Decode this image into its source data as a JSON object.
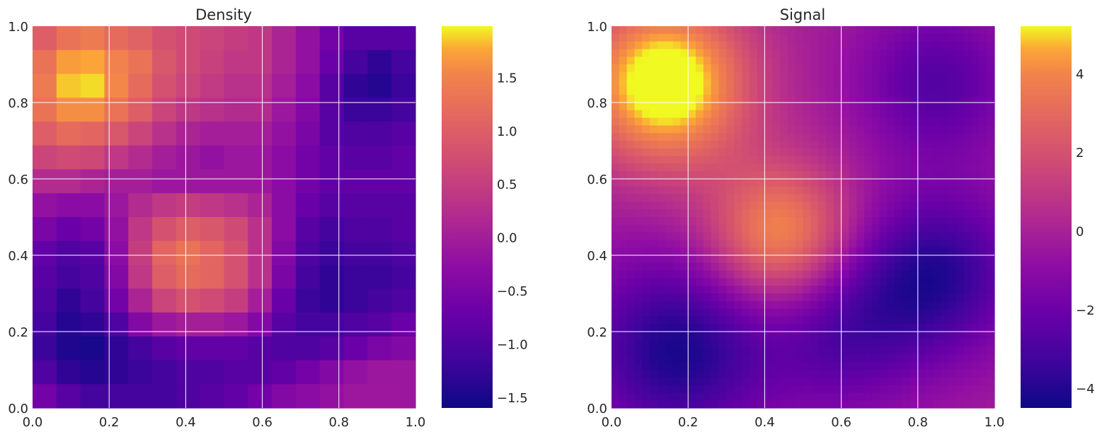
{
  "chart_data": [
    {
      "type": "heatmap",
      "title": "Density",
      "xlim": [
        0.0,
        1.0
      ],
      "ylim": [
        0.0,
        1.0
      ],
      "x_ticks": [
        "0.0",
        "0.2",
        "0.4",
        "0.6",
        "0.8",
        "1.0"
      ],
      "y_ticks": [
        "0.0",
        "0.2",
        "0.4",
        "0.6",
        "0.8",
        "1.0"
      ],
      "grid": true,
      "colormap": "plasma",
      "colorbar": {
        "min": -1.6,
        "max": 1.98,
        "ticks": [
          -1.5,
          -1.0,
          -0.5,
          0.0,
          0.5,
          1.0,
          1.5
        ],
        "tick_labels": [
          "−1.5",
          "−1.0",
          "−0.5",
          "0.0",
          "0.5",
          "1.0",
          "1.5"
        ]
      },
      "grid_shape": [
        16,
        16
      ],
      "row_order": "top-to-bottom",
      "values": [
        [
          1.0,
          1.3,
          1.4,
          1.2,
          1.05,
          0.8,
          0.7,
          0.6,
          0.5,
          0.4,
          0.1,
          -0.2,
          -0.6,
          -0.9,
          -0.9,
          -0.9
        ],
        [
          1.3,
          1.7,
          1.75,
          1.5,
          1.3,
          0.9,
          0.7,
          0.55,
          0.4,
          0.4,
          0.1,
          -0.2,
          -0.7,
          -1.1,
          -1.3,
          -1.1
        ],
        [
          1.4,
          1.85,
          1.9,
          1.55,
          1.2,
          0.8,
          0.6,
          0.45,
          0.3,
          0.3,
          0.0,
          -0.3,
          -0.9,
          -1.3,
          -1.4,
          -1.2
        ],
        [
          1.3,
          1.6,
          1.6,
          1.3,
          1.0,
          0.6,
          0.4,
          0.3,
          0.2,
          0.2,
          -0.1,
          -0.4,
          -0.9,
          -1.2,
          -1.2,
          -1.1
        ],
        [
          1.0,
          1.2,
          1.1,
          0.9,
          0.6,
          0.3,
          0.1,
          0.0,
          0.0,
          0.0,
          -0.2,
          -0.5,
          -0.9,
          -1.0,
          -1.0,
          -0.9
        ],
        [
          0.6,
          0.7,
          0.65,
          0.4,
          0.2,
          0.0,
          -0.1,
          -0.2,
          -0.1,
          -0.1,
          -0.3,
          -0.6,
          -0.8,
          -0.9,
          -0.9,
          -0.8
        ],
        [
          0.2,
          0.2,
          0.1,
          0.0,
          0.0,
          -0.1,
          -0.1,
          -0.1,
          -0.1,
          -0.1,
          -0.3,
          -0.6,
          -0.8,
          -0.8,
          -0.8,
          -0.8
        ],
        [
          -0.2,
          -0.3,
          -0.3,
          -0.1,
          0.2,
          0.4,
          0.5,
          0.4,
          0.3,
          0.1,
          -0.3,
          -0.7,
          -0.9,
          -0.9,
          -0.9,
          -0.9
        ],
        [
          -0.5,
          -0.7,
          -0.6,
          -0.2,
          0.4,
          0.8,
          1.0,
          0.9,
          0.7,
          0.3,
          -0.3,
          -0.9,
          -1.1,
          -1.0,
          -1.0,
          -0.9
        ],
        [
          -0.8,
          -1.0,
          -0.9,
          -0.3,
          0.5,
          1.1,
          1.3,
          1.1,
          0.8,
          0.3,
          -0.4,
          -1.0,
          -1.2,
          -1.1,
          -1.1,
          -1.0
        ],
        [
          -0.9,
          -1.1,
          -1.0,
          -0.4,
          0.4,
          1.0,
          1.2,
          1.1,
          0.8,
          0.3,
          -0.5,
          -1.1,
          -1.3,
          -1.2,
          -1.2,
          -1.1
        ],
        [
          -1.0,
          -1.3,
          -1.1,
          -0.6,
          0.1,
          0.6,
          0.8,
          0.7,
          0.5,
          0.0,
          -0.7,
          -1.2,
          -1.3,
          -1.2,
          -1.1,
          -1.0
        ],
        [
          -1.1,
          -1.4,
          -1.3,
          -1.0,
          -0.4,
          -0.1,
          0.0,
          0.0,
          -0.1,
          -0.4,
          -0.9,
          -1.1,
          -1.1,
          -1.0,
          -0.9,
          -0.7
        ],
        [
          -1.2,
          -1.45,
          -1.5,
          -1.3,
          -1.1,
          -0.9,
          -0.8,
          -0.8,
          -0.8,
          -0.9,
          -1.0,
          -1.0,
          -0.9,
          -0.7,
          -0.5,
          -0.4
        ],
        [
          -1.0,
          -1.3,
          -1.4,
          -1.3,
          -1.2,
          -1.1,
          -1.0,
          -1.0,
          -0.9,
          -0.9,
          -0.8,
          -0.6,
          -0.4,
          -0.2,
          -0.1,
          -0.1
        ],
        [
          -0.6,
          -0.9,
          -1.1,
          -1.1,
          -1.1,
          -1.1,
          -1.0,
          -0.9,
          -0.8,
          -0.6,
          -0.4,
          -0.3,
          -0.2,
          -0.1,
          -0.1,
          -0.1
        ]
      ]
    },
    {
      "type": "heatmap",
      "title": "Signal",
      "xlim": [
        0.0,
        1.0
      ],
      "ylim": [
        0.0,
        1.0
      ],
      "x_ticks": [
        "0.0",
        "0.2",
        "0.4",
        "0.6",
        "0.8",
        "1.0"
      ],
      "y_ticks": [
        "0.0",
        "0.2",
        "0.4",
        "0.6",
        "0.8",
        "1.0"
      ],
      "grid": true,
      "colormap": "plasma",
      "colorbar": {
        "min": -4.5,
        "max": 5.2,
        "ticks": [
          -4,
          -2,
          0,
          2,
          4
        ],
        "tick_labels": [
          "−4",
          "−2",
          "0",
          "2",
          "4"
        ]
      },
      "components": [
        {
          "cx": 0.14,
          "cy": 0.85,
          "amp": 6.5,
          "sigma": 0.15
        },
        {
          "cx": 0.44,
          "cy": 0.45,
          "amp": 4.5,
          "sigma": 0.13
        },
        {
          "cx": 0.17,
          "cy": 0.15,
          "amp": -4.0,
          "sigma": 0.17
        },
        {
          "cx": 0.85,
          "cy": 0.35,
          "amp": -3.6,
          "sigma": 0.15
        },
        {
          "cx": 0.85,
          "cy": 0.85,
          "amp": -2.5,
          "sigma": 0.14
        },
        {
          "cx": 0.6,
          "cy": 0.2,
          "amp": -2.5,
          "sigma": 0.15
        }
      ],
      "baseline": -0.2,
      "resolution": 50
    }
  ]
}
